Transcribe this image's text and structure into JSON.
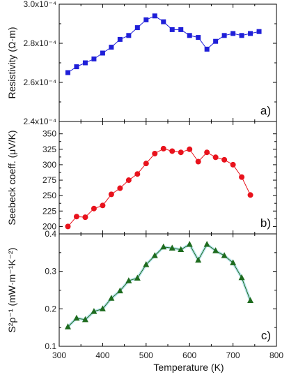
{
  "chart_data": [
    {
      "type": "scatter",
      "panel_label": "a)",
      "ylabel": "Resistivity (Ω·m)",
      "xlim": [
        300,
        800
      ],
      "ylim": [
        0.00024,
        0.0003
      ],
      "yticks": [
        0.00024,
        0.00026,
        0.00028,
        0.0003
      ],
      "ytick_labels": [
        "2.4x10⁻⁴",
        "2.6x10⁻⁴",
        "2.8x10⁻⁴",
        "3.0x10⁻⁴"
      ],
      "marker": "square",
      "color": "#1f1fd8",
      "line_color": "#1f1fd8",
      "band": false,
      "x": [
        320,
        340,
        360,
        380,
        400,
        420,
        440,
        460,
        480,
        500,
        520,
        540,
        560,
        580,
        600,
        620,
        640,
        660,
        680,
        700,
        720,
        740,
        760
      ],
      "y": [
        0.000265,
        0.000268,
        0.00027,
        0.000272,
        0.000275,
        0.000278,
        0.000282,
        0.000284,
        0.000288,
        0.000292,
        0.000294,
        0.000291,
        0.000287,
        0.000287,
        0.000284,
        0.000283,
        0.000277,
        0.000281,
        0.000284,
        0.000285,
        0.000284,
        0.000285,
        0.000286
      ]
    },
    {
      "type": "scatter",
      "panel_label": "b)",
      "ylabel": "Seebeck coeff. (μV/K)",
      "xlim": [
        300,
        800
      ],
      "ylim": [
        188,
        370
      ],
      "yticks": [
        200,
        225,
        250,
        275,
        300,
        325,
        350
      ],
      "ytick_labels": [
        "200",
        "225",
        "250",
        "275",
        "300",
        "325",
        "350"
      ],
      "marker": "circle",
      "color": "#e8121c",
      "line_color": "#e8121c",
      "band": false,
      "x": [
        320,
        340,
        360,
        380,
        400,
        420,
        440,
        460,
        480,
        500,
        520,
        540,
        560,
        580,
        600,
        620,
        640,
        660,
        680,
        700,
        720,
        740
      ],
      "y": [
        200,
        216,
        215,
        229,
        234,
        252,
        262,
        275,
        285,
        302,
        318,
        326,
        322,
        320,
        325,
        305,
        320,
        312,
        308,
        300,
        280,
        251
      ]
    },
    {
      "type": "line",
      "panel_label": "c)",
      "ylabel": "S²ρ⁻¹ (mW·m⁻¹K⁻²)",
      "xlabel": "Temperature (K)",
      "xlim": [
        300,
        800
      ],
      "xticks": [
        300,
        400,
        500,
        600,
        700,
        800
      ],
      "ylim": [
        0.1,
        0.4
      ],
      "yticks": [
        0.1,
        0.2,
        0.3,
        0.4
      ],
      "ytick_labels": [
        "0.1",
        "0.2",
        "0.3",
        "0.4"
      ],
      "marker": "triangle",
      "color": "#1e6b1e",
      "line_color": "#1e6b1e",
      "band": true,
      "band_color": "#7fd0e0",
      "x": [
        320,
        340,
        360,
        380,
        400,
        420,
        440,
        460,
        480,
        500,
        520,
        540,
        560,
        580,
        600,
        620,
        640,
        660,
        680,
        700,
        720,
        740
      ],
      "y": [
        0.152,
        0.175,
        0.171,
        0.193,
        0.2,
        0.228,
        0.248,
        0.275,
        0.282,
        0.318,
        0.342,
        0.365,
        0.362,
        0.358,
        0.372,
        0.33,
        0.372,
        0.355,
        0.342,
        0.323,
        0.283,
        0.222
      ]
    }
  ]
}
